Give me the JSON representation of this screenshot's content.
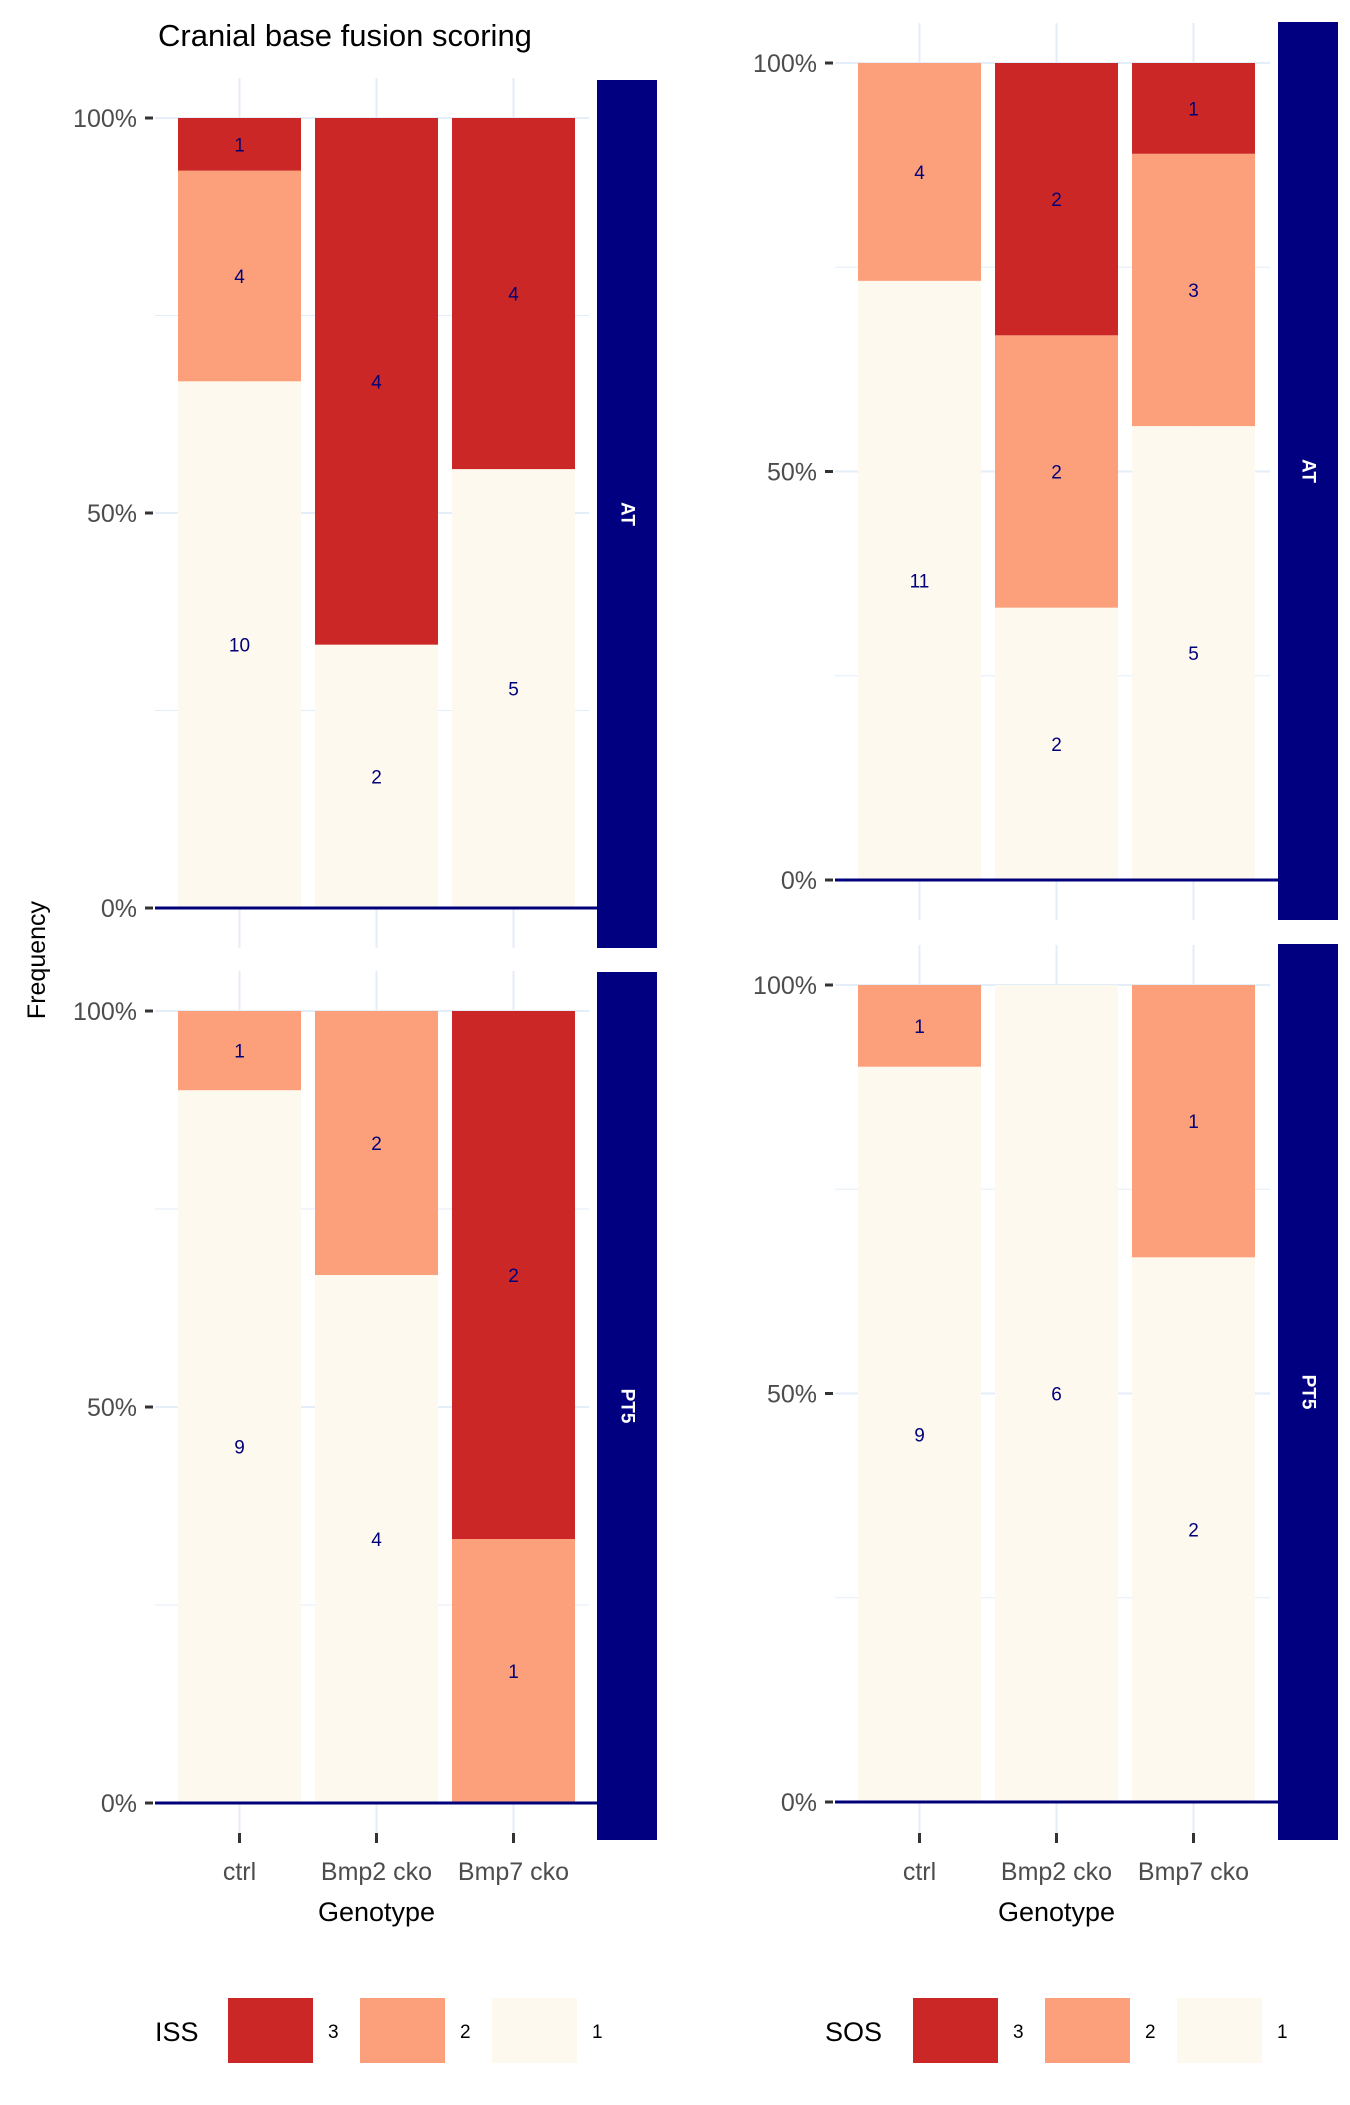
{
  "title": "Cranial base fusion scoring",
  "colors": {
    "level_3": "#cb2727",
    "level_2": "#fca07b",
    "level_1": "#fef9ef",
    "count_text": "#00007a",
    "strip_fill": "#000080",
    "strip_text": "#ffffff",
    "baseline": "#00007a",
    "grid": "#e4eef8"
  },
  "chart_data": {
    "type": "bar",
    "stacked": true,
    "normalized_to_percent": true,
    "ylabel": "Frequency",
    "categories": [
      "ctrl",
      "Bmp2 cko",
      "Bmp7 cko"
    ],
    "y_ticks": [
      "0%",
      "50%",
      "100%"
    ],
    "ylim": [
      0,
      1
    ],
    "grid": true,
    "panels": [
      {
        "score": "ISS",
        "time": "AT",
        "show_title": true,
        "show_x_axis": false,
        "bars": [
          {
            "category": "ctrl",
            "segments": [
              {
                "level": "1",
                "count": 10
              },
              {
                "level": "2",
                "count": 4
              },
              {
                "level": "3",
                "count": 1
              }
            ]
          },
          {
            "category": "Bmp2 cko",
            "segments": [
              {
                "level": "1",
                "count": 2
              },
              {
                "level": "3",
                "count": 4
              }
            ]
          },
          {
            "category": "Bmp7 cko",
            "segments": [
              {
                "level": "1",
                "count": 5
              },
              {
                "level": "3",
                "count": 4
              }
            ]
          }
        ]
      },
      {
        "score": "SOS",
        "time": "AT",
        "show_title": false,
        "show_x_axis": false,
        "bars": [
          {
            "category": "ctrl",
            "segments": [
              {
                "level": "1",
                "count": 11
              },
              {
                "level": "2",
                "count": 4
              }
            ]
          },
          {
            "category": "Bmp2 cko",
            "segments": [
              {
                "level": "1",
                "count": 2
              },
              {
                "level": "2",
                "count": 2
              },
              {
                "level": "3",
                "count": 2
              }
            ]
          },
          {
            "category": "Bmp7 cko",
            "segments": [
              {
                "level": "1",
                "count": 5
              },
              {
                "level": "2",
                "count": 3
              },
              {
                "level": "3",
                "count": 1
              }
            ]
          }
        ]
      },
      {
        "score": "ISS",
        "time": "PT5",
        "show_title": false,
        "show_x_axis": true,
        "xlabel": "Genotype",
        "bars": [
          {
            "category": "ctrl",
            "segments": [
              {
                "level": "1",
                "count": 9
              },
              {
                "level": "2",
                "count": 1
              }
            ]
          },
          {
            "category": "Bmp2 cko",
            "segments": [
              {
                "level": "1",
                "count": 4
              },
              {
                "level": "2",
                "count": 2
              }
            ]
          },
          {
            "category": "Bmp7 cko",
            "segments": [
              {
                "level": "2",
                "count": 1
              },
              {
                "level": "3",
                "count": 2
              }
            ]
          }
        ]
      },
      {
        "score": "SOS",
        "time": "PT5",
        "show_title": false,
        "show_x_axis": true,
        "xlabel": "Genotype",
        "bars": [
          {
            "category": "ctrl",
            "segments": [
              {
                "level": "1",
                "count": 9
              },
              {
                "level": "2",
                "count": 1
              }
            ]
          },
          {
            "category": "Bmp2 cko",
            "segments": [
              {
                "level": "1",
                "count": 6
              }
            ]
          },
          {
            "category": "Bmp7 cko",
            "segments": [
              {
                "level": "1",
                "count": 2
              },
              {
                "level": "2",
                "count": 1
              }
            ]
          }
        ]
      }
    ],
    "legends": [
      {
        "title": "ISS",
        "entries": [
          "3",
          "2",
          "1"
        ]
      },
      {
        "title": "SOS",
        "entries": [
          "3",
          "2",
          "1"
        ]
      }
    ]
  }
}
